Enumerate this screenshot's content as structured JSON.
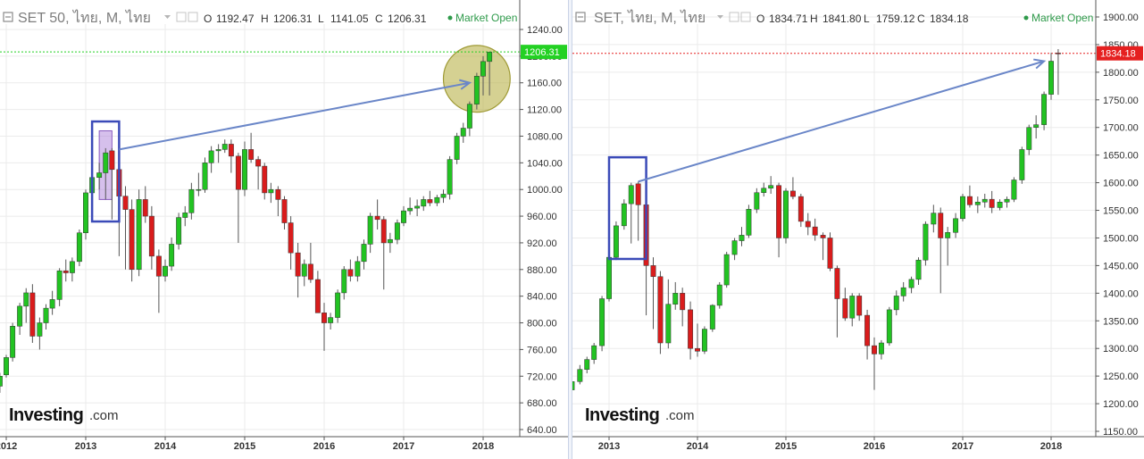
{
  "colors": {
    "up": "#22c322",
    "down": "#d91c1c",
    "grid": "#ebebeb",
    "arrow": "#6a86c8",
    "box": "#3b4bb8",
    "market_open": "#2e9a4a"
  },
  "chart_data": [
    {
      "type": "candlestick",
      "title": "SET 50, ไทย, M, ไทย",
      "ohlc": {
        "o_label": "O",
        "o": "1192.47",
        "h_label": "H",
        "h": "1206.31",
        "l_label": "L",
        "l": "1141.05",
        "c_label": "C",
        "c": "1206.31"
      },
      "status": "Market Open",
      "last_price": 1206.31,
      "last_price_label": "1206.31",
      "last_price_color": "#23d123",
      "ylim": [
        640,
        1240
      ],
      "y_ticks": [
        "1240.00",
        "1200.00",
        "1160.00",
        "1120.00",
        "1080.00",
        "1040.00",
        "1000.00",
        "960.00",
        "920.00",
        "880.00",
        "840.00",
        "800.00",
        "760.00",
        "720.00",
        "680.00",
        "640.00"
      ],
      "x_ticks": [
        {
          "label": "2012",
          "year": 2012
        },
        {
          "label": "2013",
          "year": 2013
        },
        {
          "label": "2014",
          "year": 2014
        },
        {
          "label": "2015",
          "year": 2015
        },
        {
          "label": "2016",
          "year": 2016
        },
        {
          "label": "2017",
          "year": 2017
        },
        {
          "label": "2018",
          "year": 2018
        }
      ],
      "highlight_box": {
        "from": 2013.08,
        "to": 2013.42,
        "low": 952,
        "high": 1102
      },
      "inner_box": {
        "from": 2013.17,
        "to": 2013.33,
        "low": 985,
        "high": 1088
      },
      "arrow": {
        "from_x": 2013.42,
        "from_y": 1060,
        "to_x": 2017.83,
        "to_y": 1160
      },
      "circle": {
        "cx": 2017.92,
        "cy": 1166,
        "r_years": 0.42
      },
      "watermark": {
        "brand": "Investing",
        "domain": ".com"
      },
      "candles": [
        [
          2011.92,
          705,
          725,
          695,
          720
        ],
        [
          2012.0,
          722,
          752,
          718,
          748
        ],
        [
          2012.08,
          748,
          800,
          742,
          795
        ],
        [
          2012.17,
          795,
          830,
          782,
          825
        ],
        [
          2012.25,
          825,
          852,
          800,
          845
        ],
        [
          2012.33,
          845,
          858,
          770,
          780
        ],
        [
          2012.42,
          780,
          808,
          760,
          800
        ],
        [
          2012.5,
          800,
          828,
          790,
          822
        ],
        [
          2012.58,
          822,
          848,
          812,
          835
        ],
        [
          2012.67,
          835,
          882,
          825,
          878
        ],
        [
          2012.75,
          878,
          895,
          862,
          875
        ],
        [
          2012.83,
          875,
          898,
          862,
          892
        ],
        [
          2012.92,
          892,
          940,
          885,
          935
        ],
        [
          2013.0,
          935,
          1000,
          925,
          995
        ],
        [
          2013.08,
          995,
          1022,
          978,
          1018
        ],
        [
          2013.17,
          1018,
          1040,
          1000,
          1025
        ],
        [
          2013.25,
          1025,
          1062,
          985,
          1055
        ],
        [
          2013.33,
          1058,
          1062,
          955,
          1030
        ],
        [
          2013.42,
          1030,
          1040,
          900,
          990
        ],
        [
          2013.5,
          990,
          1005,
          880,
          970
        ],
        [
          2013.58,
          970,
          985,
          862,
          880
        ],
        [
          2013.67,
          880,
          1000,
          870,
          985
        ],
        [
          2013.75,
          985,
          1005,
          950,
          960
        ],
        [
          2013.83,
          960,
          975,
          880,
          900
        ],
        [
          2013.92,
          900,
          910,
          815,
          870
        ],
        [
          2014.0,
          870,
          895,
          862,
          885
        ],
        [
          2014.08,
          885,
          928,
          878,
          918
        ],
        [
          2014.17,
          918,
          965,
          910,
          958
        ],
        [
          2014.25,
          958,
          975,
          945,
          965
        ],
        [
          2014.33,
          965,
          1010,
          955,
          1000
        ],
        [
          2014.42,
          1000,
          1025,
          990,
          1000
        ],
        [
          2014.5,
          1000,
          1048,
          995,
          1040
        ],
        [
          2014.58,
          1040,
          1065,
          1025,
          1058
        ],
        [
          2014.67,
          1058,
          1068,
          1040,
          1060
        ],
        [
          2014.75,
          1060,
          1075,
          1055,
          1068
        ],
        [
          2014.83,
          1068,
          1075,
          1025,
          1050
        ],
        [
          2014.92,
          1050,
          1055,
          920,
          1000
        ],
        [
          2015.0,
          1000,
          1072,
          990,
          1060
        ],
        [
          2015.08,
          1060,
          1085,
          1040,
          1045
        ],
        [
          2015.17,
          1045,
          1050,
          1000,
          1035
        ],
        [
          2015.25,
          1035,
          1040,
          985,
          995
        ],
        [
          2015.33,
          995,
          1010,
          980,
          1000
        ],
        [
          2015.42,
          1000,
          1005,
          960,
          985
        ],
        [
          2015.5,
          985,
          990,
          940,
          950
        ],
        [
          2015.58,
          950,
          960,
          880,
          905
        ],
        [
          2015.67,
          905,
          920,
          838,
          870
        ],
        [
          2015.75,
          870,
          895,
          855,
          888
        ],
        [
          2015.83,
          888,
          920,
          860,
          865
        ],
        [
          2015.92,
          865,
          878,
          820,
          815
        ],
        [
          2016.0,
          815,
          830,
          758,
          800
        ],
        [
          2016.08,
          800,
          815,
          790,
          808
        ],
        [
          2016.17,
          808,
          850,
          800,
          845
        ],
        [
          2016.25,
          845,
          885,
          835,
          880
        ],
        [
          2016.33,
          880,
          895,
          862,
          870
        ],
        [
          2016.42,
          870,
          900,
          862,
          892
        ],
        [
          2016.5,
          892,
          925,
          880,
          918
        ],
        [
          2016.58,
          918,
          965,
          905,
          960
        ],
        [
          2016.67,
          960,
          985,
          940,
          955
        ],
        [
          2016.75,
          955,
          960,
          850,
          920
        ],
        [
          2016.83,
          920,
          935,
          905,
          925
        ],
        [
          2016.92,
          925,
          955,
          918,
          950
        ],
        [
          2017.0,
          950,
          975,
          945,
          968
        ],
        [
          2017.08,
          968,
          988,
          962,
          972
        ],
        [
          2017.17,
          972,
          985,
          960,
          975
        ],
        [
          2017.25,
          975,
          990,
          968,
          985
        ],
        [
          2017.33,
          985,
          998,
          975,
          980
        ],
        [
          2017.42,
          980,
          992,
          975,
          988
        ],
        [
          2017.5,
          988,
          1000,
          980,
          993
        ],
        [
          2017.58,
          993,
          1050,
          985,
          1045
        ],
        [
          2017.67,
          1045,
          1085,
          1038,
          1080
        ],
        [
          2017.75,
          1080,
          1100,
          1070,
          1092
        ],
        [
          2017.83,
          1092,
          1132,
          1080,
          1128
        ],
        [
          2017.92,
          1128,
          1175,
          1120,
          1170
        ],
        [
          2018.0,
          1170,
          1200,
          1141,
          1192
        ],
        [
          2018.08,
          1192,
          1206,
          1141,
          1206
        ]
      ]
    },
    {
      "type": "candlestick",
      "title": "SET, ไทย, M, ไทย",
      "ohlc": {
        "o_label": "O",
        "o": "1834.71",
        "h_label": "H",
        "h": "1841.80",
        "l_label": "L",
        "l": "1759.12",
        "c_label": "C",
        "c": "1834.18"
      },
      "status": "Market Open",
      "last_price": 1834.18,
      "last_price_label": "1834.18",
      "last_price_color": "#e52020",
      "ylim": [
        1150,
        1900
      ],
      "y_ticks": [
        "1900.00",
        "1850.00",
        "1800.00",
        "1750.00",
        "1700.00",
        "1650.00",
        "1600.00",
        "1550.00",
        "1500.00",
        "1450.00",
        "1400.00",
        "1350.00",
        "1300.00",
        "1250.00",
        "1200.00",
        "1150.00"
      ],
      "x_ticks": [
        {
          "label": "2013",
          "year": 2013
        },
        {
          "label": "2014",
          "year": 2014
        },
        {
          "label": "2015",
          "year": 2015
        },
        {
          "label": "2016",
          "year": 2016
        },
        {
          "label": "2017",
          "year": 2017
        },
        {
          "label": "2018",
          "year": 2018
        }
      ],
      "highlight_box": {
        "from": 2013.0,
        "to": 2013.42,
        "low": 1462,
        "high": 1646
      },
      "arrow": {
        "from_x": 2013.33,
        "from_y": 1602,
        "to_x": 2017.92,
        "to_y": 1820
      },
      "watermark": {
        "brand": "Investing",
        "domain": ".com"
      },
      "candles": [
        [
          2012.58,
          1225,
          1250,
          1220,
          1240
        ],
        [
          2012.67,
          1240,
          1270,
          1235,
          1262
        ],
        [
          2012.75,
          1262,
          1285,
          1255,
          1280
        ],
        [
          2012.83,
          1280,
          1310,
          1272,
          1305
        ],
        [
          2012.92,
          1305,
          1395,
          1295,
          1390
        ],
        [
          2013.0,
          1390,
          1470,
          1385,
          1465
        ],
        [
          2013.08,
          1465,
          1530,
          1460,
          1522
        ],
        [
          2013.17,
          1522,
          1570,
          1515,
          1562
        ],
        [
          2013.25,
          1562,
          1600,
          1490,
          1595
        ],
        [
          2013.33,
          1598,
          1602,
          1495,
          1560
        ],
        [
          2013.42,
          1560,
          1565,
          1360,
          1450
        ],
        [
          2013.5,
          1450,
          1465,
          1335,
          1430
        ],
        [
          2013.58,
          1430,
          1440,
          1290,
          1310
        ],
        [
          2013.67,
          1310,
          1425,
          1300,
          1380
        ],
        [
          2013.75,
          1380,
          1420,
          1370,
          1400
        ],
        [
          2013.83,
          1400,
          1410,
          1340,
          1370
        ],
        [
          2013.92,
          1370,
          1385,
          1280,
          1300
        ],
        [
          2014.0,
          1300,
          1345,
          1285,
          1295
        ],
        [
          2014.08,
          1295,
          1340,
          1290,
          1335
        ],
        [
          2014.17,
          1335,
          1380,
          1330,
          1378
        ],
        [
          2014.25,
          1378,
          1420,
          1372,
          1415
        ],
        [
          2014.33,
          1415,
          1475,
          1410,
          1470
        ],
        [
          2014.42,
          1470,
          1500,
          1460,
          1495
        ],
        [
          2014.5,
          1495,
          1520,
          1485,
          1505
        ],
        [
          2014.58,
          1505,
          1560,
          1500,
          1552
        ],
        [
          2014.67,
          1552,
          1590,
          1545,
          1582
        ],
        [
          2014.75,
          1582,
          1600,
          1575,
          1590
        ],
        [
          2014.83,
          1590,
          1612,
          1580,
          1595
        ],
        [
          2014.92,
          1595,
          1600,
          1465,
          1500
        ],
        [
          2015.0,
          1500,
          1590,
          1490,
          1585
        ],
        [
          2015.08,
          1585,
          1610,
          1570,
          1575
        ],
        [
          2015.17,
          1575,
          1580,
          1520,
          1530
        ],
        [
          2015.25,
          1530,
          1545,
          1505,
          1520
        ],
        [
          2015.33,
          1520,
          1535,
          1495,
          1505
        ],
        [
          2015.42,
          1505,
          1510,
          1460,
          1500
        ],
        [
          2015.5,
          1500,
          1510,
          1440,
          1445
        ],
        [
          2015.58,
          1445,
          1450,
          1320,
          1390
        ],
        [
          2015.67,
          1390,
          1410,
          1350,
          1355
        ],
        [
          2015.75,
          1355,
          1400,
          1340,
          1395
        ],
        [
          2015.83,
          1395,
          1400,
          1350,
          1360
        ],
        [
          2015.92,
          1360,
          1370,
          1280,
          1305
        ],
        [
          2016.0,
          1305,
          1320,
          1225,
          1290
        ],
        [
          2016.08,
          1290,
          1315,
          1280,
          1310
        ],
        [
          2016.17,
          1310,
          1375,
          1305,
          1370
        ],
        [
          2016.25,
          1370,
          1405,
          1360,
          1395
        ],
        [
          2016.33,
          1395,
          1420,
          1385,
          1410
        ],
        [
          2016.42,
          1410,
          1430,
          1400,
          1425
        ],
        [
          2016.5,
          1425,
          1465,
          1415,
          1460
        ],
        [
          2016.58,
          1460,
          1530,
          1450,
          1525
        ],
        [
          2016.67,
          1525,
          1560,
          1510,
          1545
        ],
        [
          2016.75,
          1545,
          1555,
          1400,
          1500
        ],
        [
          2016.83,
          1500,
          1520,
          1450,
          1510
        ],
        [
          2016.92,
          1510,
          1545,
          1500,
          1535
        ],
        [
          2017.0,
          1535,
          1580,
          1530,
          1575
        ],
        [
          2017.08,
          1575,
          1595,
          1555,
          1560
        ],
        [
          2017.17,
          1560,
          1575,
          1545,
          1565
        ],
        [
          2017.25,
          1565,
          1580,
          1555,
          1570
        ],
        [
          2017.33,
          1570,
          1585,
          1545,
          1555
        ],
        [
          2017.42,
          1555,
          1570,
          1550,
          1565
        ],
        [
          2017.5,
          1565,
          1575,
          1555,
          1570
        ],
        [
          2017.58,
          1570,
          1610,
          1565,
          1605
        ],
        [
          2017.67,
          1605,
          1665,
          1598,
          1660
        ],
        [
          2017.75,
          1660,
          1705,
          1650,
          1700
        ],
        [
          2017.83,
          1700,
          1722,
          1680,
          1705
        ],
        [
          2017.92,
          1705,
          1765,
          1695,
          1760
        ],
        [
          2018.0,
          1760,
          1835,
          1750,
          1820
        ],
        [
          2018.08,
          1834.71,
          1841.8,
          1759.12,
          1834.18
        ]
      ]
    }
  ]
}
